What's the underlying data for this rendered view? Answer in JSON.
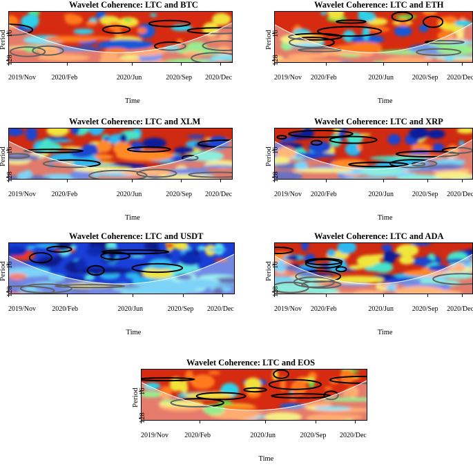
{
  "chart_data": [
    {
      "type": "heatmap",
      "title": "Wavelet Coherence: LTC and BTC",
      "xlabel": "Time",
      "ylabel": "Period",
      "x_ticks": [
        "2019/Nov",
        "2020/Feb",
        "2020/Jun",
        "2020/Sep",
        "2020/Dec"
      ],
      "y_ticks": [
        "16",
        "128"
      ],
      "coherence": "high"
    },
    {
      "type": "heatmap",
      "title": "Wavelet Coherence: LTC and ETH",
      "xlabel": "Time",
      "ylabel": "Period",
      "x_ticks": [
        "2019/Nov",
        "2020/Feb",
        "2020/Jun",
        "2020/Sep",
        "2020/Dec"
      ],
      "y_ticks": [
        "16",
        "128"
      ],
      "coherence": "high"
    },
    {
      "type": "heatmap",
      "title": "Wavelet Coherence: LTC and XLM",
      "xlabel": "Time",
      "ylabel": "Period",
      "x_ticks": [
        "2019/Nov",
        "2020/Feb",
        "2020/Jun",
        "2020/Sep",
        "2020/Dec"
      ],
      "y_ticks": [
        "16",
        "128"
      ],
      "coherence": "mixed"
    },
    {
      "type": "heatmap",
      "title": "Wavelet Coherence: LTC and XRP",
      "xlabel": "Time",
      "ylabel": "Period",
      "x_ticks": [
        "2019/Nov",
        "2020/Feb",
        "2020/Jun",
        "2020/Sep",
        "2020/Dec"
      ],
      "y_ticks": [
        "16",
        "128"
      ],
      "coherence": "mixed"
    },
    {
      "type": "heatmap",
      "title": "Wavelet Coherence: LTC and USDT",
      "xlabel": "Time",
      "ylabel": "Period",
      "x_ticks": [
        "2019/Nov",
        "2020/Feb",
        "2020/Jun",
        "2020/Sep",
        "2020/Dec"
      ],
      "y_ticks": [
        "16",
        "128"
      ],
      "coherence": "low"
    },
    {
      "type": "heatmap",
      "title": "Wavelet Coherence: LTC and ADA",
      "xlabel": "Time",
      "ylabel": "Period",
      "x_ticks": [
        "2019/Nov",
        "2020/Feb",
        "2020/Jun",
        "2020/Sep",
        "2020/Dec"
      ],
      "y_ticks": [
        "16",
        "128"
      ],
      "coherence": "mixed"
    },
    {
      "type": "heatmap",
      "title": "Wavelet Coherence: LTC and EOS",
      "xlabel": "Time",
      "ylabel": "Period",
      "x_ticks": [
        "2019/Nov",
        "2020/Feb",
        "2020/Jun",
        "2020/Sep",
        "2020/Dec"
      ],
      "y_ticks": [
        "16",
        "128"
      ],
      "coherence": "high"
    }
  ]
}
